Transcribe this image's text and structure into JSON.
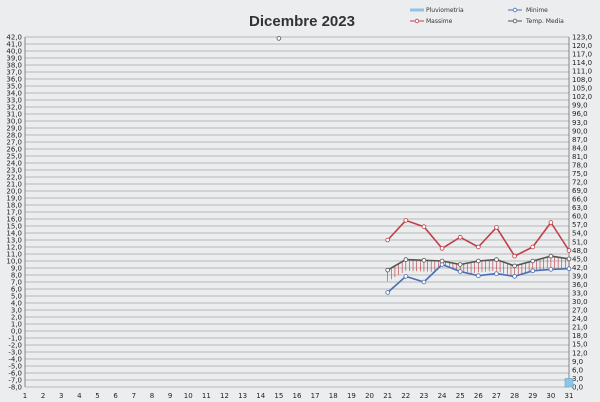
{
  "chart_data": {
    "type": "line",
    "title": "Dicembre 2023",
    "legend_position": "top-right",
    "grid": true,
    "x": [
      1,
      2,
      3,
      4,
      5,
      6,
      7,
      8,
      9,
      10,
      11,
      12,
      13,
      14,
      15,
      16,
      17,
      18,
      19,
      20,
      21,
      22,
      23,
      24,
      25,
      26,
      27,
      28,
      29,
      30,
      31
    ],
    "y_left": {
      "min": -8,
      "max": 42,
      "step": 1,
      "ticks": [
        "42,0",
        "41,0",
        "40,0",
        "39,0",
        "38,0",
        "37,0",
        "36,0",
        "35,0",
        "34,0",
        "33,0",
        "32,0",
        "31,0",
        "30,0",
        "29,0",
        "28,0",
        "27,0",
        "26,0",
        "25,0",
        "24,0",
        "23,0",
        "22,0",
        "21,0",
        "20,0",
        "19,0",
        "18,0",
        "17,0",
        "16,0",
        "15,0",
        "14,0",
        "13,0",
        "12,0",
        "11,0",
        "10,0",
        "9,0",
        "8,0",
        "7,0",
        "6,0",
        "5,0",
        "4,0",
        "3,0",
        "2,0",
        "1,0",
        "0,0",
        "-1,0",
        "-2,0",
        "-3,0",
        "-4,0",
        "-5,0",
        "-6,0",
        "-7,0",
        "-8,0"
      ]
    },
    "y_right": {
      "min": 0,
      "max": 123,
      "step": 3,
      "ticks": [
        "123,0",
        "120,0",
        "117,0",
        "114,0",
        "111,0",
        "108,0",
        "105,0",
        "102,0",
        "99,0",
        "96,0",
        "93,0",
        "90,0",
        "87,0",
        "84,0",
        "81,0",
        "78,0",
        "75,0",
        "72,0",
        "69,0",
        "66,0",
        "63,0",
        "60,0",
        "57,0",
        "54,0",
        "51,0",
        "48,0",
        "45,0",
        "42,0",
        "39,0",
        "36,0",
        "33,0",
        "30,0",
        "27,0",
        "24,0",
        "21,0",
        "18,0",
        "15,0",
        "12,0",
        "9,0",
        "6,0",
        "3,0",
        "0,0"
      ]
    },
    "series": [
      {
        "name": "Pluviometria",
        "axis": "right",
        "kind": "bar",
        "color": "#8ec5e6",
        "x": [
          31
        ],
        "values": [
          3
        ]
      },
      {
        "name": "Minime",
        "axis": "left",
        "kind": "line",
        "color": "#4a6fb5",
        "x": [
          21,
          22,
          23,
          24,
          25,
          26,
          27,
          28,
          29,
          30,
          31
        ],
        "values": [
          5.5,
          7.8,
          7.0,
          9.5,
          8.5,
          7.9,
          8.2,
          7.8,
          8.6,
          8.8,
          8.9
        ]
      },
      {
        "name": "Massime",
        "axis": "left",
        "kind": "line",
        "color": "#c0404a",
        "x": [
          21,
          22,
          23,
          24,
          25,
          26,
          27,
          28,
          29,
          30,
          31
        ],
        "values": [
          13.0,
          15.8,
          14.9,
          11.8,
          13.4,
          12.0,
          14.8,
          10.7,
          12.0,
          15.5,
          11.5
        ]
      },
      {
        "name": "Temp. Media",
        "axis": "left",
        "kind": "line",
        "color": "#555555",
        "x": [
          15,
          21,
          22,
          23,
          24,
          25,
          26,
          27,
          28,
          29,
          30,
          31
        ],
        "values": [
          41.8,
          8.7,
          10.2,
          10.1,
          10.0,
          9.5,
          10.0,
          10.2,
          9.3,
          10.0,
          10.7,
          10.3
        ]
      }
    ]
  }
}
